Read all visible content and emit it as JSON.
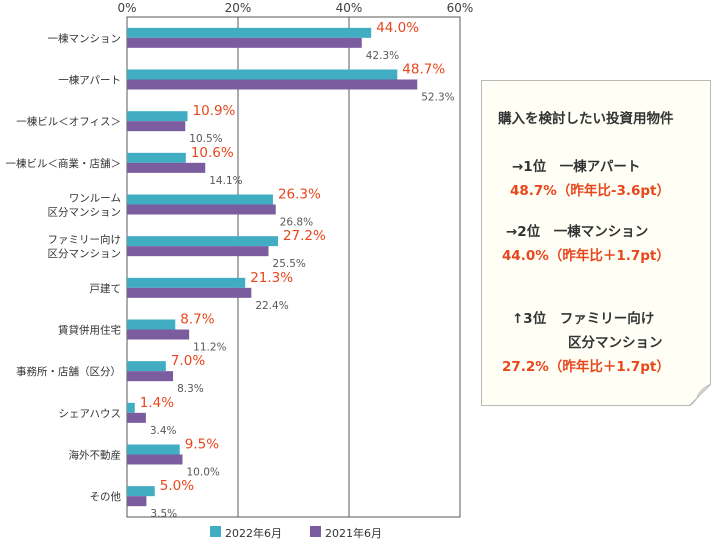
{
  "chart_data": {
    "type": "bar",
    "orientation": "horizontal",
    "title": "",
    "xlabel": "",
    "ylabel": "",
    "xlim": [
      0,
      60
    ],
    "x_ticks": [
      "0%",
      "20%",
      "40%",
      "60%"
    ],
    "grid": true,
    "legend_position": "bottom",
    "categories": [
      [
        "一棟マンション"
      ],
      [
        "一棟アパート"
      ],
      [
        "一棟ビル＜オフィス＞"
      ],
      [
        "一棟ビル＜商業・店舗＞"
      ],
      [
        "ワンルーム",
        "区分マンション"
      ],
      [
        "ファミリー向け",
        "区分マンション"
      ],
      [
        "戸建て"
      ],
      [
        "賃貸併用住宅"
      ],
      [
        "事務所・店舗（区分）"
      ],
      [
        "シェアハウス"
      ],
      [
        "海外不動産"
      ],
      [
        "その他"
      ]
    ],
    "series": [
      {
        "name": "2022年6月",
        "color": "#41adc2",
        "label_color": "#e8471d",
        "values": [
          44.0,
          48.7,
          10.9,
          10.6,
          26.3,
          27.2,
          21.3,
          8.7,
          7.0,
          1.4,
          9.5,
          5.0
        ],
        "labels": [
          "44.0%",
          "48.7%",
          "10.9%",
          "10.6%",
          "26.3%",
          "27.2%",
          "21.3%",
          "8.7%",
          "7.0%",
          "1.4%",
          "9.5%",
          "5.0%"
        ]
      },
      {
        "name": "2021年6月",
        "color": "#7b5c9e",
        "label_color": "#595959",
        "values": [
          42.3,
          52.3,
          10.5,
          14.1,
          26.8,
          25.5,
          22.4,
          11.2,
          8.3,
          3.4,
          10.0,
          3.5
        ],
        "labels": [
          "42.3%",
          "52.3%",
          "10.5%",
          "14.1%",
          "26.8%",
          "25.5%",
          "22.4%",
          "11.2%",
          "8.3%",
          "3.4%",
          "10.0%",
          "3.5%"
        ]
      }
    ]
  },
  "note": {
    "title": "購入を検討したい投資用物件",
    "rank1_line1": "→1位　一棟アパート",
    "rank1_line2": "48.7%（昨年比-3.6pt）",
    "rank2_line1": "→2位　一棟マンション",
    "rank2_line2": "44.0%（昨年比＋1.7pt）",
    "rank3_line1": "↑3位　ファミリー向け",
    "rank3_line2": "区分マンション",
    "rank3_line3": "27.2%（昨年比＋1.7pt）"
  }
}
